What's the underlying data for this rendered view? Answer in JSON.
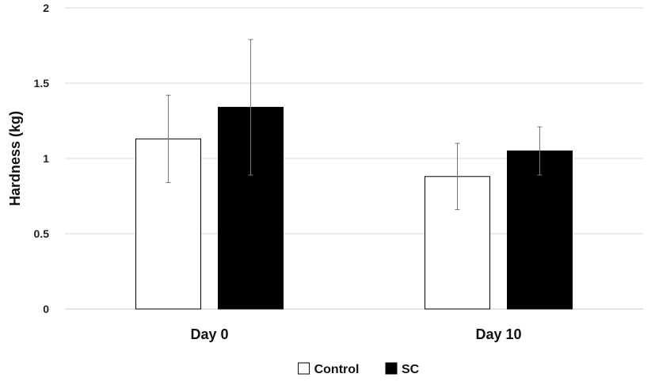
{
  "chart_data": {
    "type": "bar",
    "title": "",
    "xlabel": "",
    "ylabel": "Hardness (kg)",
    "ylim": [
      0,
      2
    ],
    "yticks": [
      0,
      0.5,
      1,
      1.5,
      2
    ],
    "ytick_labels": [
      "0",
      "0.5",
      "1",
      "1.5",
      "2"
    ],
    "grid": true,
    "legend_position": "bottom",
    "categories": [
      "Day 0",
      "Day 10"
    ],
    "series": [
      {
        "name": "Control",
        "values": [
          1.13,
          0.88
        ],
        "error_low": [
          0.84,
          0.66
        ],
        "error_high": [
          1.42,
          1.1
        ],
        "color": "#ffffff",
        "edge": "#000000"
      },
      {
        "name": "SC",
        "values": [
          1.34,
          1.05
        ],
        "error_low": [
          0.89,
          0.89
        ],
        "error_high": [
          1.79,
          1.21
        ],
        "color": "#000000",
        "edge": "#000000"
      }
    ]
  }
}
